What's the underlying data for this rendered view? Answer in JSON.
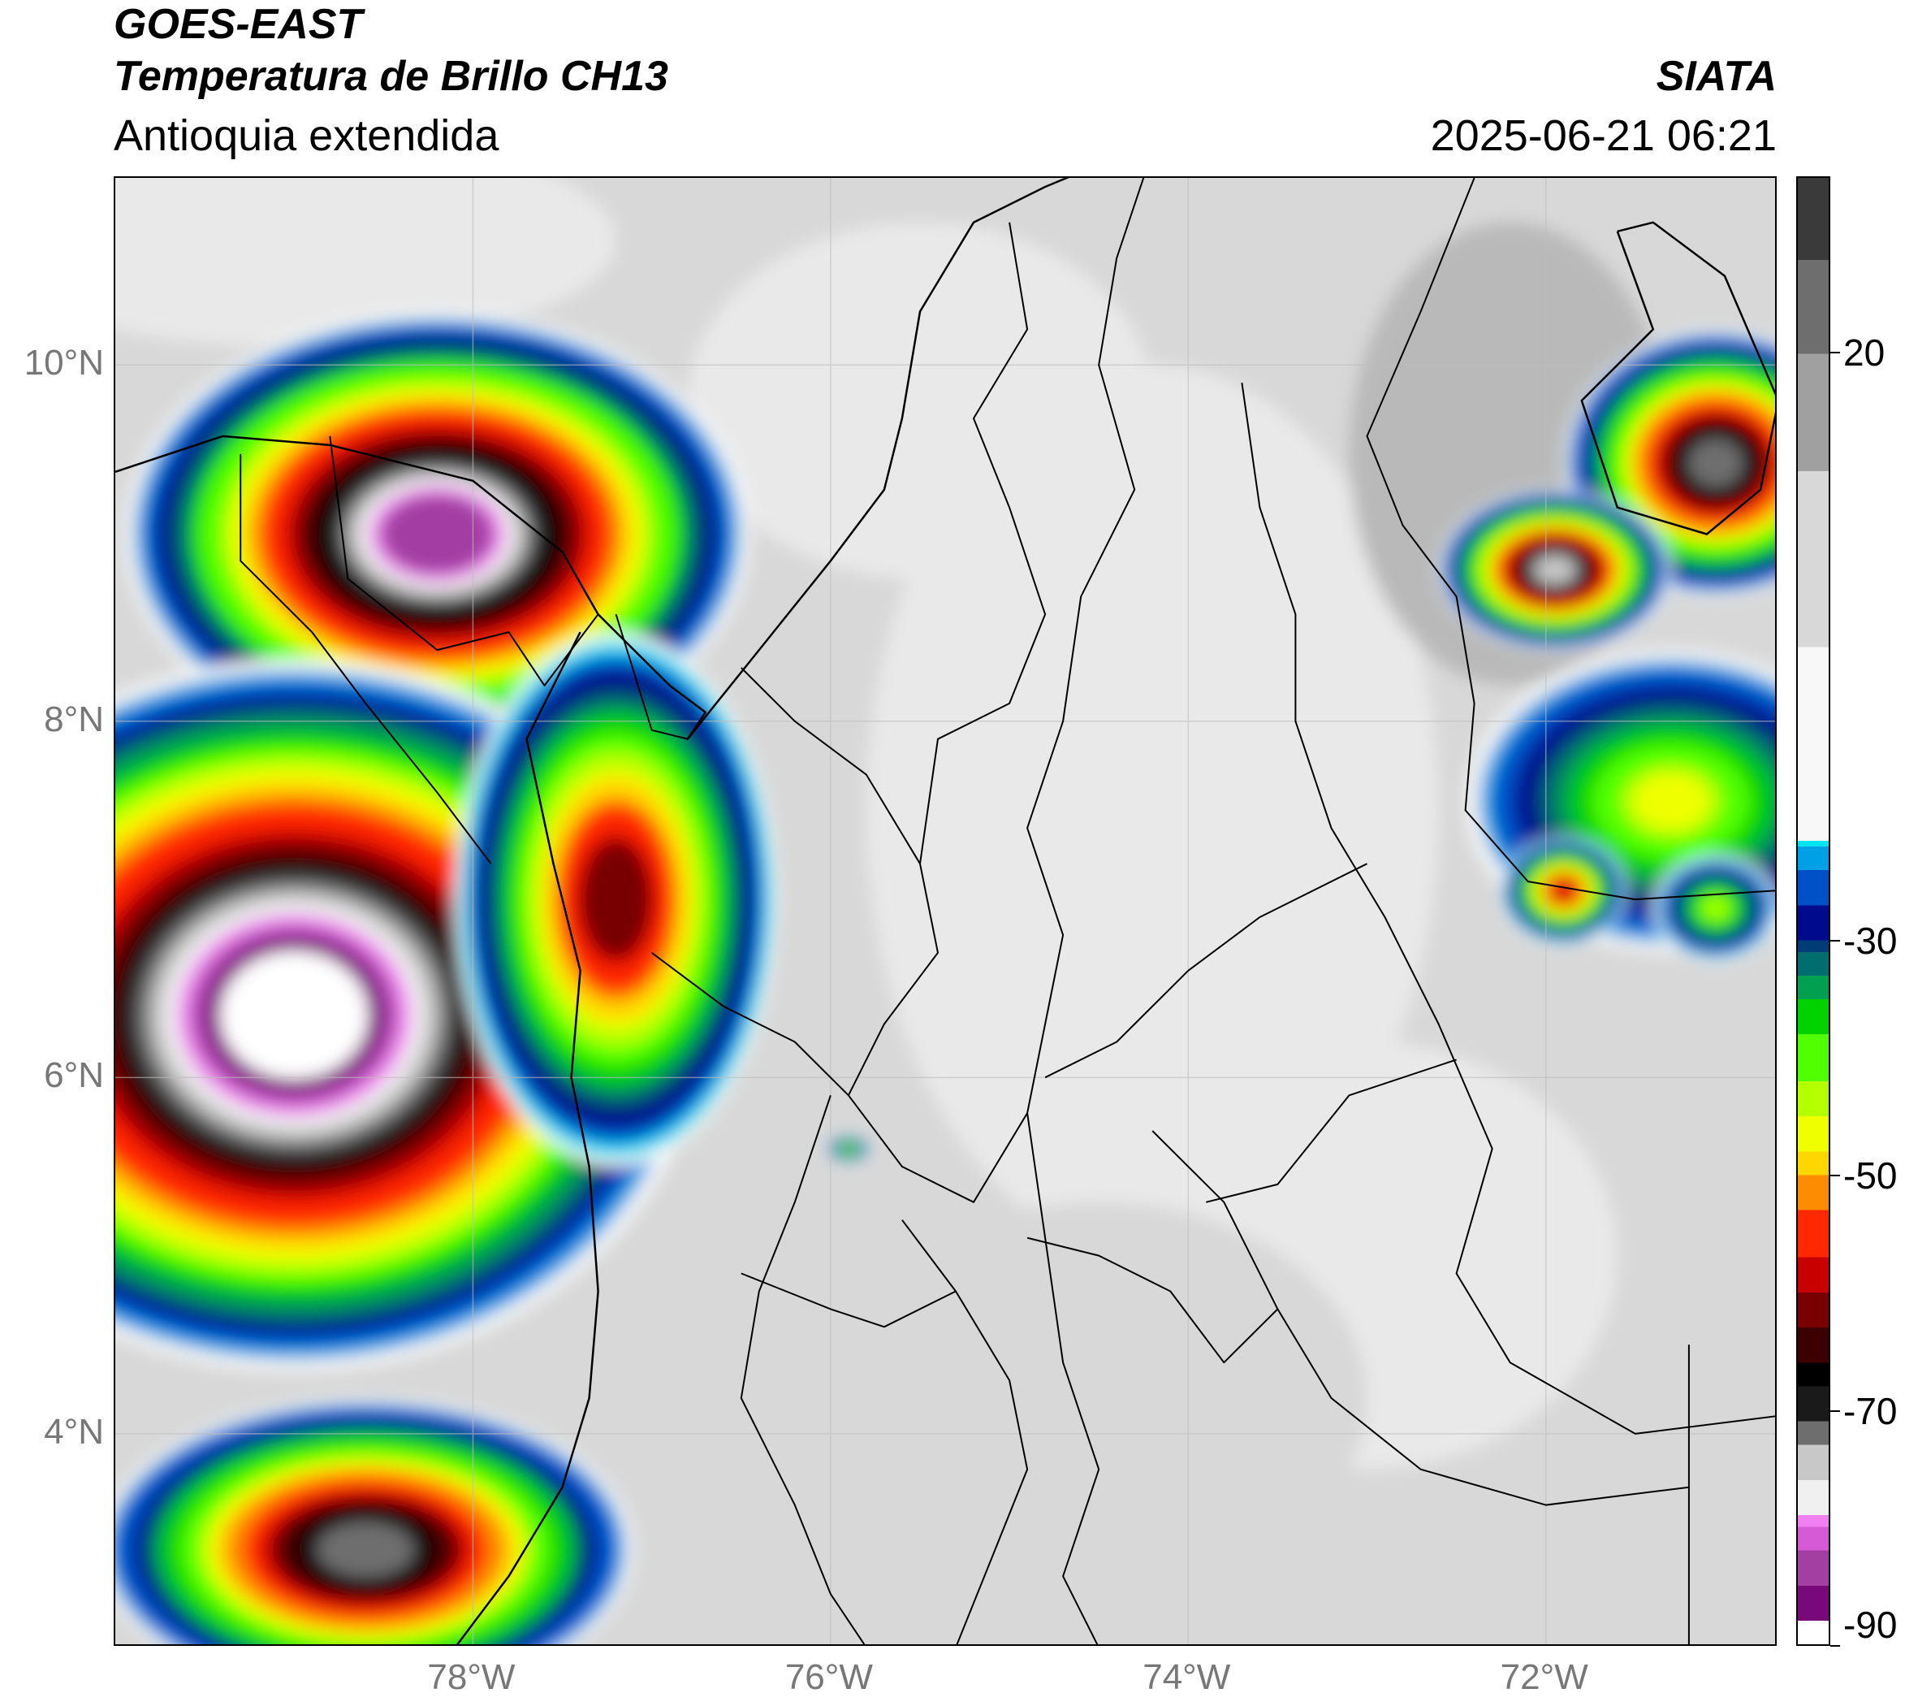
{
  "header": {
    "satellite": "GOES-EAST",
    "product": "Temperatura de Brillo CH13",
    "region": "Antioquia extendida",
    "source": "SIATA",
    "datetime": "2025-06-21 06:21"
  },
  "map": {
    "extent": {
      "lon_min": -80.0,
      "lon_max": -70.7,
      "lat_min": 2.8,
      "lat_max": 11.05
    },
    "gridlines": true,
    "lat_ticks": [
      {
        "value": 10,
        "label": "10°N"
      },
      {
        "value": 8,
        "label": "8°N"
      },
      {
        "value": 6,
        "label": "6°N"
      },
      {
        "value": 4,
        "label": "4°N"
      }
    ],
    "lon_ticks": [
      {
        "value": -78,
        "label": "78°W"
      },
      {
        "value": -76,
        "label": "76°W"
      },
      {
        "value": -74,
        "label": "74°W"
      },
      {
        "value": -72,
        "label": "72°W"
      }
    ],
    "cloud_features": [
      {
        "lon": -78.2,
        "lat": 9.05,
        "rx": 1.75,
        "ry": 1.25,
        "peak": -82
      },
      {
        "lon": -79.0,
        "lat": 6.35,
        "rx": 2.3,
        "ry": 2.0,
        "peak": -88
      },
      {
        "lon": -78.6,
        "lat": 3.35,
        "rx": 1.5,
        "ry": 0.85,
        "peak": -72
      },
      {
        "lon": -77.2,
        "lat": 7.0,
        "rx": 0.9,
        "ry": 1.5,
        "peak": -62
      },
      {
        "lon": -71.05,
        "lat": 9.45,
        "rx": 0.85,
        "ry": 0.75,
        "peak": -72
      },
      {
        "lon": -71.95,
        "lat": 8.85,
        "rx": 0.65,
        "ry": 0.45,
        "peak": -74
      },
      {
        "lon": -71.3,
        "lat": 7.55,
        "rx": 1.15,
        "ry": 0.85,
        "peak": -45
      },
      {
        "lon": -71.9,
        "lat": 7.05,
        "rx": 0.35,
        "ry": 0.3,
        "peak": -58
      },
      {
        "lon": -71.05,
        "lat": 6.95,
        "rx": 0.35,
        "ry": 0.3,
        "peak": -42
      },
      {
        "lon": -75.9,
        "lat": 5.6,
        "rx": 0.12,
        "ry": 0.07,
        "peak": -42
      }
    ],
    "coastline": [
      [
        -80.0,
        9.4
      ],
      [
        -79.4,
        9.6
      ],
      [
        -78.8,
        9.55
      ],
      [
        -78.0,
        9.35
      ],
      [
        -77.5,
        8.95
      ],
      [
        -77.3,
        8.6
      ],
      [
        -76.9,
        8.2
      ],
      [
        -76.7,
        8.05
      ],
      [
        -76.8,
        7.9
      ],
      [
        -76.4,
        8.4
      ],
      [
        -76.0,
        8.9
      ],
      [
        -75.7,
        9.3
      ],
      [
        -75.6,
        9.7
      ],
      [
        -75.5,
        10.3
      ],
      [
        -75.2,
        10.8
      ],
      [
        -74.8,
        11.0
      ],
      [
        -74.2,
        11.25
      ]
    ],
    "pacific_coast": [
      [
        -77.4,
        8.5
      ],
      [
        -77.7,
        7.9
      ],
      [
        -77.55,
        7.2
      ],
      [
        -77.4,
        6.6
      ],
      [
        -77.45,
        6.0
      ],
      [
        -77.35,
        5.5
      ],
      [
        -77.3,
        4.8
      ],
      [
        -77.35,
        4.2
      ],
      [
        -77.5,
        3.7
      ],
      [
        -77.8,
        3.2
      ],
      [
        -78.1,
        2.8
      ]
    ],
    "lake_maracaibo": [
      [
        -71.6,
        10.75
      ],
      [
        -71.4,
        10.2
      ],
      [
        -71.8,
        9.8
      ],
      [
        -71.6,
        9.2
      ],
      [
        -71.1,
        9.05
      ],
      [
        -70.8,
        9.3
      ],
      [
        -70.7,
        9.8
      ],
      [
        -71.0,
        10.5
      ],
      [
        -71.4,
        10.8
      ],
      [
        -71.6,
        10.75
      ]
    ],
    "borders": [
      [
        [
          -77.2,
          8.6
        ],
        [
          -77.0,
          7.95
        ],
        [
          -76.8,
          7.9
        ]
      ],
      [
        [
          -72.4,
          11.05
        ],
        [
          -72.7,
          10.3
        ],
        [
          -73.0,
          9.6
        ],
        [
          -72.8,
          9.1
        ],
        [
          -72.5,
          8.7
        ],
        [
          -72.4,
          8.1
        ],
        [
          -72.45,
          7.5
        ],
        [
          -72.1,
          7.1
        ],
        [
          -71.5,
          7.0
        ],
        [
          -70.7,
          7.05
        ]
      ],
      [
        [
          -71.2,
          4.5
        ],
        [
          -71.2,
          3.5
        ],
        [
          -71.2,
          2.8
        ]
      ],
      [
        [
          -74.2,
          11.2
        ],
        [
          -74.4,
          10.6
        ],
        [
          -74.5,
          10.0
        ],
        [
          -74.3,
          9.3
        ],
        [
          -74.6,
          8.7
        ],
        [
          -74.7,
          8.0
        ],
        [
          -74.9,
          7.4
        ],
        [
          -74.7,
          6.8
        ],
        [
          -74.8,
          6.3
        ],
        [
          -74.9,
          5.8
        ],
        [
          -74.8,
          5.1
        ],
        [
          -74.7,
          4.4
        ],
        [
          -74.5,
          3.8
        ],
        [
          -74.7,
          3.2
        ],
        [
          -74.5,
          2.8
        ]
      ],
      [
        [
          -76.5,
          8.3
        ],
        [
          -76.2,
          8.0
        ],
        [
          -75.8,
          7.7
        ],
        [
          -75.5,
          7.2
        ],
        [
          -75.4,
          6.7
        ],
        [
          -75.7,
          6.3
        ],
        [
          -75.9,
          5.9
        ],
        [
          -75.6,
          5.5
        ],
        [
          -75.2,
          5.3
        ],
        [
          -74.9,
          5.8
        ]
      ],
      [
        [
          -75.0,
          10.8
        ],
        [
          -74.9,
          10.2
        ],
        [
          -75.2,
          9.7
        ],
        [
          -75.0,
          9.2
        ],
        [
          -74.8,
          8.6
        ],
        [
          -75.0,
          8.1
        ],
        [
          -75.4,
          7.9
        ],
        [
          -75.5,
          7.2
        ]
      ],
      [
        [
          -73.7,
          9.9
        ],
        [
          -73.6,
          9.2
        ],
        [
          -73.4,
          8.6
        ],
        [
          -73.4,
          8.0
        ],
        [
          -73.2,
          7.4
        ],
        [
          -72.9,
          6.9
        ],
        [
          -72.6,
          6.3
        ],
        [
          -72.3,
          5.6
        ],
        [
          -72.5,
          4.9
        ],
        [
          -72.2,
          4.4
        ],
        [
          -71.5,
          4.0
        ],
        [
          -70.7,
          4.1
        ]
      ],
      [
        [
          -76.0,
          5.9
        ],
        [
          -76.2,
          5.3
        ],
        [
          -76.4,
          4.8
        ],
        [
          -76.5,
          4.2
        ],
        [
          -76.2,
          3.6
        ],
        [
          -76.0,
          3.1
        ],
        [
          -75.8,
          2.8
        ]
      ],
      [
        [
          -75.6,
          5.2
        ],
        [
          -75.3,
          4.8
        ],
        [
          -75.0,
          4.3
        ],
        [
          -74.9,
          3.8
        ],
        [
          -75.1,
          3.3
        ],
        [
          -75.3,
          2.8
        ]
      ],
      [
        [
          -74.2,
          5.7
        ],
        [
          -73.8,
          5.3
        ],
        [
          -73.5,
          4.7
        ],
        [
          -73.2,
          4.2
        ],
        [
          -72.7,
          3.8
        ],
        [
          -72.0,
          3.6
        ],
        [
          -71.2,
          3.7
        ]
      ],
      [
        [
          -73.0,
          7.2
        ],
        [
          -73.6,
          6.9
        ],
        [
          -74.0,
          6.6
        ],
        [
          -74.4,
          6.2
        ],
        [
          -74.8,
          6.0
        ]
      ],
      [
        [
          -72.5,
          6.1
        ],
        [
          -73.1,
          5.9
        ],
        [
          -73.5,
          5.4
        ],
        [
          -73.9,
          5.3
        ]
      ],
      [
        [
          -77.0,
          6.7
        ],
        [
          -76.6,
          6.4
        ],
        [
          -76.2,
          6.2
        ],
        [
          -75.9,
          5.9
        ]
      ],
      [
        [
          -76.5,
          4.9
        ],
        [
          -76.0,
          4.7
        ],
        [
          -75.7,
          4.6
        ],
        [
          -75.3,
          4.8
        ]
      ],
      [
        [
          -74.9,
          5.1
        ],
        [
          -74.5,
          5.0
        ],
        [
          -74.1,
          4.8
        ],
        [
          -73.8,
          4.4
        ],
        [
          -73.5,
          4.7
        ]
      ],
      [
        [
          -78.8,
          9.6
        ],
        [
          -78.7,
          8.8
        ],
        [
          -78.2,
          8.4
        ],
        [
          -77.8,
          8.5
        ],
        [
          -77.6,
          8.2
        ],
        [
          -77.3,
          8.6
        ]
      ],
      [
        [
          -79.3,
          9.5
        ],
        [
          -79.3,
          8.9
        ],
        [
          -78.9,
          8.5
        ],
        [
          -78.6,
          8.1
        ],
        [
          -78.2,
          7.6
        ],
        [
          -77.9,
          7.2
        ]
      ]
    ]
  },
  "colorbar": {
    "vmin": -90,
    "vmax": 35,
    "ticks": [
      {
        "value": 20,
        "label": "20"
      },
      {
        "value": -30,
        "label": "-30"
      },
      {
        "value": -50,
        "label": "-50"
      },
      {
        "value": -70,
        "label": "-70"
      },
      {
        "value": -90,
        "label": "-90"
      }
    ],
    "stops": [
      {
        "t": -90,
        "color": "#ffffff"
      },
      {
        "t": -88,
        "color": "#780978"
      },
      {
        "t": -85,
        "color": "#a33ea3"
      },
      {
        "t": -82,
        "color": "#d55ad5"
      },
      {
        "t": -80,
        "color": "#f080f0"
      },
      {
        "t": -79,
        "color": "#f0f0f0"
      },
      {
        "t": -76,
        "color": "#c8c8c8"
      },
      {
        "t": -73,
        "color": "#6e6e6e"
      },
      {
        "t": -71,
        "color": "#1a1a1a"
      },
      {
        "t": -68,
        "color": "#000000"
      },
      {
        "t": -66,
        "color": "#3c0000"
      },
      {
        "t": -63,
        "color": "#780000"
      },
      {
        "t": -60,
        "color": "#c80000"
      },
      {
        "t": -57,
        "color": "#ff2800"
      },
      {
        "t": -53,
        "color": "#ff8c00"
      },
      {
        "t": -50,
        "color": "#ffd700"
      },
      {
        "t": -48,
        "color": "#f0ff00"
      },
      {
        "t": -45,
        "color": "#b4ff00"
      },
      {
        "t": -42,
        "color": "#50ff00"
      },
      {
        "t": -38,
        "color": "#00d200"
      },
      {
        "t": -35,
        "color": "#00a050"
      },
      {
        "t": -33,
        "color": "#006e6e"
      },
      {
        "t": -31,
        "color": "#003c78"
      },
      {
        "t": -30,
        "color": "#000a8c"
      },
      {
        "t": -27,
        "color": "#0050c8"
      },
      {
        "t": -24,
        "color": "#00a0e6"
      },
      {
        "t": -22,
        "color": "#00e6f0"
      },
      {
        "t": -21.5,
        "color": "#f8f8f8"
      },
      {
        "t": -5,
        "color": "#d8d8d8"
      },
      {
        "t": 10,
        "color": "#a0a0a0"
      },
      {
        "t": 20,
        "color": "#6e6e6e"
      },
      {
        "t": 28,
        "color": "#3a3a3a"
      },
      {
        "t": 35,
        "color": "#050505"
      }
    ]
  }
}
